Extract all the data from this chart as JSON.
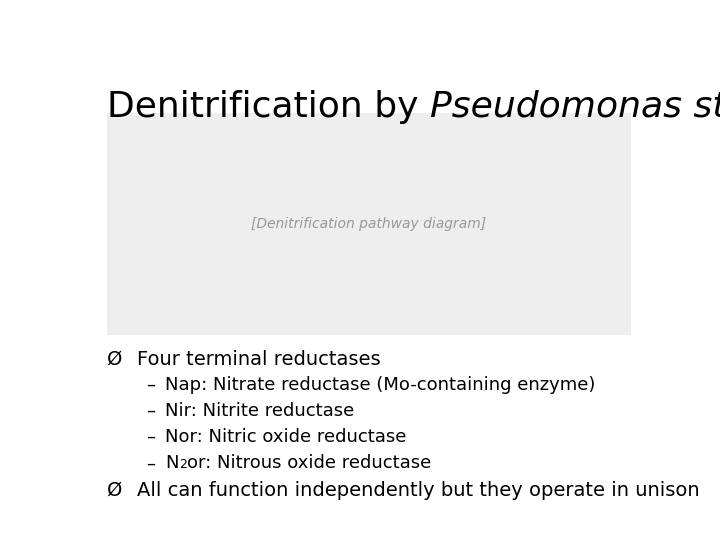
{
  "title_normal": "Denitrification by ",
  "title_italic": "Pseudomonas stutzeri",
  "background_color": "#ffffff",
  "title_fontsize": 26,
  "bullet1": "Four terminal reductases",
  "sub_bullets": [
    "Nap: Nitrate reductase (Mo-containing enzyme)",
    "Nir: Nitrite reductase",
    "Nor: Nitric oxide reductase",
    "or: Nitrous oxide reductase"
  ],
  "bullet2": "All can function independently but they operate in unison",
  "image_placeholder_color": "#eeeeee",
  "text_color": "#000000",
  "bullet_fontsize": 14,
  "sub_bullet_fontsize": 13
}
